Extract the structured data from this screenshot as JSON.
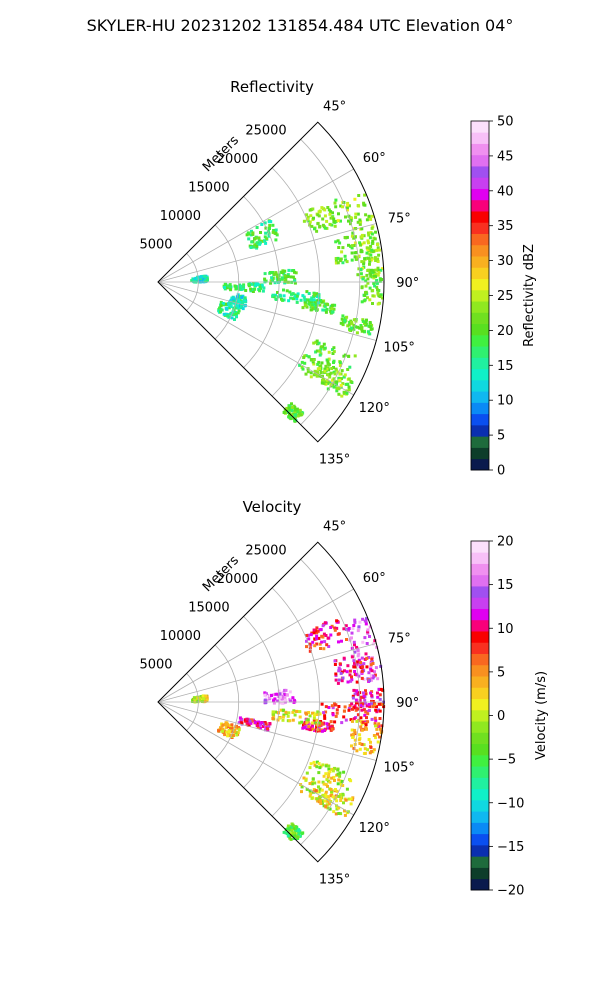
{
  "figure": {
    "suptitle": "SKYLER-HU  20231202  131854.484 UTC Elevation 04°"
  },
  "chart_data": [
    {
      "type": "heatmap",
      "title": "Reflectivity",
      "radial_label": "Meters",
      "radial_ticks": [
        "5000",
        "10000",
        "15000",
        "20000",
        "25000"
      ],
      "radial_values": [
        5000,
        10000,
        15000,
        20000,
        25000
      ],
      "rmax": 28000,
      "azimuth_range_deg": [
        45,
        135
      ],
      "angle_ticks": [
        "45°",
        "60°",
        "75°",
        "90°",
        "105°",
        "120°",
        "135°"
      ],
      "angle_values": [
        45,
        60,
        75,
        90,
        105,
        120,
        135
      ],
      "grid": true,
      "colorbar": {
        "label": "Reflectivity dBZ",
        "range": [
          0,
          50
        ],
        "ticks": [
          "0",
          "5",
          "10",
          "15",
          "20",
          "25",
          "30",
          "35",
          "40",
          "45",
          "50"
        ],
        "tick_values": [
          0,
          5,
          10,
          15,
          20,
          25,
          30,
          35,
          40,
          45,
          50
        ],
        "colors": [
          "#0a1a4d",
          "#0d3d2a",
          "#1e6b3c",
          "#0a2fb0",
          "#0a4ff0",
          "#0a8af5",
          "#10b8f0",
          "#10d8e0",
          "#10f0c8",
          "#20f0a0",
          "#30f070",
          "#40f040",
          "#58e020",
          "#70e020",
          "#90e820",
          "#c0f020",
          "#f0f020",
          "#f8d020",
          "#f8b020",
          "#f89020",
          "#f86820",
          "#f83020",
          "#f80000",
          "#f8007a",
          "#e000f0",
          "#c840f0",
          "#a050f0",
          "#e070f0",
          "#f090f0",
          "#f8c0f8",
          "#fce0fc"
        ]
      },
      "echo_regions": [
        {
          "az": [
            64,
            72
          ],
          "r": [
            19500,
            24500
          ],
          "value": 22
        },
        {
          "az": [
            66,
            88
          ],
          "r": [
            24500,
            27800
          ],
          "value": 23
        },
        {
          "az": [
            76,
            84
          ],
          "r": [
            22000,
            27500
          ],
          "value": 21
        },
        {
          "az": [
            86,
            96
          ],
          "r": [
            25000,
            27800
          ],
          "value": 21
        },
        {
          "az": [
            84,
            90
          ],
          "r": [
            13000,
            17000
          ],
          "value": 19
        },
        {
          "az": [
            96,
            100
          ],
          "r": [
            18000,
            22000
          ],
          "value": 20
        },
        {
          "az": [
            90,
            95
          ],
          "r": [
            8000,
            13000
          ],
          "value": 17
        },
        {
          "az": [
            100,
            104
          ],
          "r": [
            23000,
            27000
          ],
          "value": 21
        },
        {
          "az": [
            106,
            116
          ],
          "r": [
            8000,
            10500
          ],
          "value": 16
        },
        {
          "az": [
            110,
            122
          ],
          "r": [
            20000,
            26000
          ],
          "value": 21
        },
        {
          "az": [
            116,
            122
          ],
          "r": [
            22000,
            27000
          ],
          "value": 22
        },
        {
          "az": [
            132,
            136
          ],
          "r": [
            22000,
            24000
          ],
          "value": 20
        },
        {
          "az": [
            80,
            88
          ],
          "r": [
            4000,
            6000
          ],
          "value": 14
        },
        {
          "az": [
            93,
            98
          ],
          "r": [
            14000,
            20000
          ],
          "value": 17
        },
        {
          "az": [
            98,
            108
          ],
          "r": [
            9000,
            11000
          ],
          "value": 14
        },
        {
          "az": [
            60,
            70
          ],
          "r": [
            12000,
            16000
          ],
          "value": 18
        }
      ]
    },
    {
      "type": "heatmap",
      "title": "Velocity",
      "radial_label": "Meters",
      "radial_ticks": [
        "5000",
        "10000",
        "15000",
        "20000",
        "25000"
      ],
      "radial_values": [
        5000,
        10000,
        15000,
        20000,
        25000
      ],
      "rmax": 28000,
      "azimuth_range_deg": [
        45,
        135
      ],
      "angle_ticks": [
        "45°",
        "60°",
        "75°",
        "90°",
        "105°",
        "120°",
        "135°"
      ],
      "angle_values": [
        45,
        60,
        75,
        90,
        105,
        120,
        135
      ],
      "grid": true,
      "colorbar": {
        "label": "Velocity (m/s)",
        "range": [
          -20,
          20
        ],
        "ticks": [
          "−20",
          "−15",
          "−10",
          "−5",
          "0",
          "5",
          "10",
          "15",
          "20"
        ],
        "tick_values": [
          -20,
          -15,
          -10,
          -5,
          0,
          5,
          10,
          15,
          20
        ],
        "colors": [
          "#0a1a4d",
          "#0d3d2a",
          "#1e6b3c",
          "#0a2fb0",
          "#0a4ff0",
          "#0a8af5",
          "#10b8f0",
          "#10d8e0",
          "#10f0c8",
          "#20f0a0",
          "#30f070",
          "#40f040",
          "#58e020",
          "#70e020",
          "#90e820",
          "#c0f020",
          "#f0f020",
          "#f8d020",
          "#f8b020",
          "#f89020",
          "#f86820",
          "#f83020",
          "#f80000",
          "#f8007a",
          "#e000f0",
          "#c840f0",
          "#a050f0",
          "#e070f0",
          "#f090f0",
          "#f8c0f8",
          "#fce0fc"
        ]
      },
      "echo_regions": [
        {
          "az": [
            64,
            72
          ],
          "r": [
            19500,
            24500
          ],
          "value": 9
        },
        {
          "az": [
            66,
            84
          ],
          "r": [
            24500,
            27800
          ],
          "value": 14
        },
        {
          "az": [
            76,
            84
          ],
          "r": [
            22000,
            27000
          ],
          "value": 10
        },
        {
          "az": [
            86,
            92
          ],
          "r": [
            24000,
            27800
          ],
          "value": 11
        },
        {
          "az": [
            84,
            90
          ],
          "r": [
            13000,
            17000
          ],
          "value": 15
        },
        {
          "az": [
            90,
            96
          ],
          "r": [
            20000,
            27800
          ],
          "value": 9
        },
        {
          "az": [
            95,
            104
          ],
          "r": [
            24000,
            27800
          ],
          "value": 4
        },
        {
          "az": [
            96,
            100
          ],
          "r": [
            18000,
            22000
          ],
          "value": 9
        },
        {
          "az": [
            100,
            104
          ],
          "r": [
            10000,
            14000
          ],
          "value": 10
        },
        {
          "az": [
            106,
            116
          ],
          "r": [
            8000,
            10500
          ],
          "value": 3
        },
        {
          "az": [
            110,
            122
          ],
          "r": [
            20000,
            26000
          ],
          "value": 0
        },
        {
          "az": [
            116,
            122
          ],
          "r": [
            22000,
            27000
          ],
          "value": 2
        },
        {
          "az": [
            132,
            136
          ],
          "r": [
            22000,
            24000
          ],
          "value": -4
        },
        {
          "az": [
            80,
            88
          ],
          "r": [
            4000,
            6000
          ],
          "value": 0
        },
        {
          "az": [
            93,
            98
          ],
          "r": [
            14000,
            20000
          ],
          "value": 1
        }
      ]
    }
  ]
}
